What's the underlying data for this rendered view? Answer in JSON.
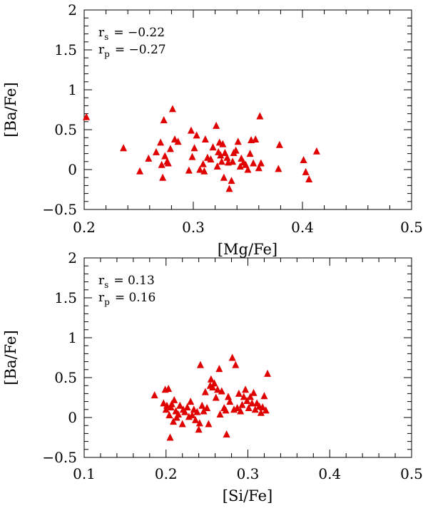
{
  "chart_data": [
    {
      "type": "scatter",
      "xlabel": "[Mg/Fe]",
      "ylabel": "[Ba/Fe]",
      "xlim": [
        0.2,
        0.5
      ],
      "ylim": [
        -0.5,
        2.0
      ],
      "xticks": [
        0.2,
        0.3,
        0.4,
        0.5
      ],
      "xtick_labels": [
        "0.2",
        "0.3",
        "0.4",
        "0.5"
      ],
      "yticks": [
        -0.5,
        0,
        0.5,
        1,
        1.5,
        2
      ],
      "ytick_labels": [
        "−0.5",
        "0",
        "0.5",
        "1",
        "1.5",
        "2"
      ],
      "stats": [
        {
          "sym": "r",
          "sub": "s",
          "value": "= −0.22"
        },
        {
          "sym": "r",
          "sub": "p",
          "value": "= −0.27"
        }
      ],
      "marker_color": "#e00000",
      "grid": false,
      "points": [
        [
          0.202,
          0.66
        ],
        [
          0.236,
          0.27
        ],
        [
          0.251,
          -0.02
        ],
        [
          0.259,
          0.14
        ],
        [
          0.266,
          0.22
        ],
        [
          0.27,
          0.34
        ],
        [
          0.271,
          0.06
        ],
        [
          0.272,
          -0.1
        ],
        [
          0.273,
          0.62
        ],
        [
          0.274,
          0.17
        ],
        [
          0.276,
          0.1
        ],
        [
          0.277,
          0.08
        ],
        [
          0.279,
          0.26
        ],
        [
          0.281,
          0.76
        ],
        [
          0.283,
          0.38
        ],
        [
          0.286,
          0.35
        ],
        [
          0.296,
          -0.01
        ],
        [
          0.298,
          0.49
        ],
        [
          0.299,
          0.16
        ],
        [
          0.301,
          0.27
        ],
        [
          0.303,
          0.43
        ],
        [
          0.306,
          0.0
        ],
        [
          0.309,
          0.07
        ],
        [
          0.31,
          -0.02
        ],
        [
          0.311,
          0.38
        ],
        [
          0.313,
          0.15
        ],
        [
          0.316,
          0.13
        ],
        [
          0.318,
          0.28
        ],
        [
          0.321,
          0.55
        ],
        [
          0.322,
          0.04
        ],
        [
          0.323,
          0.22
        ],
        [
          0.324,
          0.34
        ],
        [
          0.325,
          0.18
        ],
        [
          0.326,
          0.1
        ],
        [
          0.327,
          0.32
        ],
        [
          0.328,
          -0.1
        ],
        [
          0.329,
          0.21
        ],
        [
          0.331,
          0.15
        ],
        [
          0.332,
          0.09
        ],
        [
          0.333,
          -0.24
        ],
        [
          0.335,
          -0.14
        ],
        [
          0.336,
          0.1
        ],
        [
          0.337,
          0.21
        ],
        [
          0.339,
          0.24
        ],
        [
          0.341,
          0.35
        ],
        [
          0.343,
          0.04
        ],
        [
          0.344,
          0.14
        ],
        [
          0.346,
          0.09
        ],
        [
          0.348,
          0.06
        ],
        [
          0.35,
          0.0
        ],
        [
          0.352,
          0.2
        ],
        [
          0.353,
          0.37
        ],
        [
          0.355,
          0.08
        ],
        [
          0.357,
          0.38
        ],
        [
          0.36,
          0.02
        ],
        [
          0.361,
          0.67
        ],
        [
          0.362,
          0.08
        ],
        [
          0.378,
          0.01
        ],
        [
          0.379,
          0.31
        ],
        [
          0.401,
          0.12
        ],
        [
          0.403,
          -0.03
        ],
        [
          0.406,
          -0.12
        ],
        [
          0.413,
          0.23
        ]
      ]
    },
    {
      "type": "scatter",
      "xlabel": "[Si/Fe]",
      "ylabel": "[Ba/Fe]",
      "xlim": [
        0.1,
        0.5
      ],
      "ylim": [
        -0.5,
        2.0
      ],
      "xticks": [
        0.1,
        0.2,
        0.3,
        0.4,
        0.5
      ],
      "xtick_labels": [
        "0.1",
        "0.2",
        "0.3",
        "0.4",
        "0.5"
      ],
      "yticks": [
        -0.5,
        0,
        0.5,
        1,
        1.5,
        2
      ],
      "ytick_labels": [
        "−0.5",
        "0",
        "0.5",
        "1",
        "1.5",
        "2"
      ],
      "stats": [
        {
          "sym": "r",
          "sub": "s",
          "value": "= 0.13"
        },
        {
          "sym": "r",
          "sub": "p",
          "value": "= 0.16"
        }
      ],
      "marker_color": "#e00000",
      "grid": false,
      "points": [
        [
          0.186,
          0.28
        ],
        [
          0.197,
          0.18
        ],
        [
          0.199,
          0.35
        ],
        [
          0.2,
          0.1
        ],
        [
          0.201,
          0.15
        ],
        [
          0.203,
          0.36
        ],
        [
          0.204,
          0.03
        ],
        [
          0.205,
          -0.25
        ],
        [
          0.206,
          0.13
        ],
        [
          0.207,
          0.17
        ],
        [
          0.209,
          -0.05
        ],
        [
          0.21,
          0.22
        ],
        [
          0.212,
          0.08
        ],
        [
          0.213,
          0.0
        ],
        [
          0.215,
          0.04
        ],
        [
          0.217,
          0.15
        ],
        [
          0.22,
          -0.08
        ],
        [
          0.221,
          0.1
        ],
        [
          0.223,
          0.07
        ],
        [
          0.226,
          0.13
        ],
        [
          0.228,
          0.01
        ],
        [
          0.23,
          0.2
        ],
        [
          0.232,
          0.03
        ],
        [
          0.234,
          0.1
        ],
        [
          0.236,
          -0.03
        ],
        [
          0.238,
          0.07
        ],
        [
          0.24,
          -0.15
        ],
        [
          0.241,
          -0.07
        ],
        [
          0.242,
          0.66
        ],
        [
          0.244,
          0.15
        ],
        [
          0.246,
          0.08
        ],
        [
          0.248,
          0.32
        ],
        [
          0.25,
          0.12
        ],
        [
          0.252,
          -0.08
        ],
        [
          0.254,
          0.4
        ],
        [
          0.255,
          0.48
        ],
        [
          0.257,
          0.38
        ],
        [
          0.259,
          0.43
        ],
        [
          0.261,
          0.25
        ],
        [
          0.263,
          0.35
        ],
        [
          0.265,
          0.61
        ],
        [
          0.266,
          0.04
        ],
        [
          0.268,
          0.33
        ],
        [
          0.271,
          0.12
        ],
        [
          0.273,
          0.09
        ],
        [
          0.274,
          -0.21
        ],
        [
          0.276,
          0.26
        ],
        [
          0.278,
          0.2
        ],
        [
          0.281,
          0.75
        ],
        [
          0.283,
          0.1
        ],
        [
          0.285,
          0.66
        ],
        [
          0.287,
          0.12
        ],
        [
          0.289,
          0.3
        ],
        [
          0.291,
          0.08
        ],
        [
          0.293,
          0.16
        ],
        [
          0.295,
          0.26
        ],
        [
          0.297,
          0.35
        ],
        [
          0.299,
          0.21
        ],
        [
          0.301,
          0.12
        ],
        [
          0.303,
          0.26
        ],
        [
          0.305,
          0.18
        ],
        [
          0.307,
          0.31
        ],
        [
          0.309,
          0.1
        ],
        [
          0.311,
          0.18
        ],
        [
          0.314,
          0.14
        ],
        [
          0.316,
          0.06
        ],
        [
          0.318,
          0.13
        ],
        [
          0.32,
          0.27
        ],
        [
          0.322,
          0.09
        ],
        [
          0.324,
          0.55
        ]
      ]
    }
  ]
}
